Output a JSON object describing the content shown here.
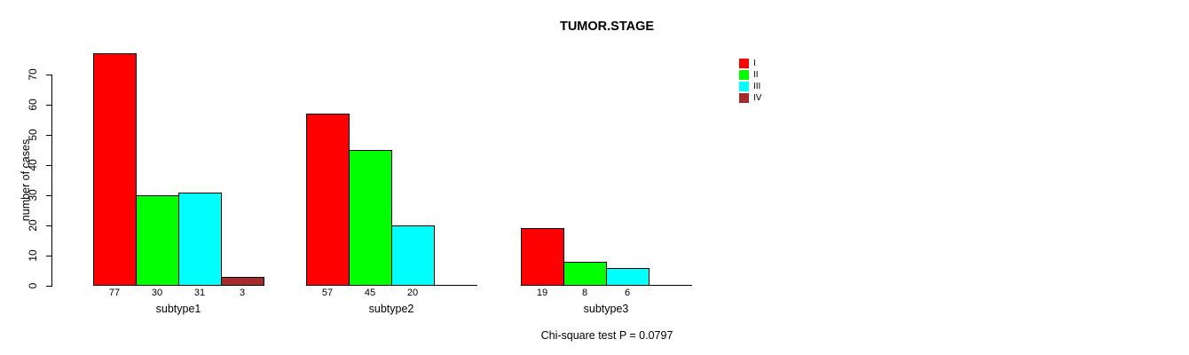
{
  "chart_data": {
    "type": "bar",
    "title": "TUMOR.STAGE",
    "ylabel": "number of cases",
    "xlabel": "",
    "ylim": [
      0,
      70
    ],
    "yticks": [
      0,
      10,
      20,
      30,
      40,
      50,
      60,
      70
    ],
    "grid": false,
    "legend_position": "top-right",
    "categories": [
      "subtype1",
      "subtype2",
      "subtype3"
    ],
    "series": [
      {
        "name": "I",
        "color": "#FF0000",
        "values": [
          77,
          57,
          19
        ]
      },
      {
        "name": "II",
        "color": "#00FF00",
        "values": [
          30,
          45,
          8
        ]
      },
      {
        "name": "III",
        "color": "#00FFFF",
        "values": [
          31,
          20,
          6
        ]
      },
      {
        "name": "IV",
        "color": "#A52A2A",
        "values": [
          3,
          null,
          null
        ]
      }
    ],
    "bar_value_labels": [
      [
        "77",
        "30",
        "31",
        "3"
      ],
      [
        "57",
        "45",
        "20",
        ""
      ],
      [
        "19",
        "8",
        "6",
        ""
      ]
    ],
    "annotation": "Chi-square test P = 0.0797"
  }
}
